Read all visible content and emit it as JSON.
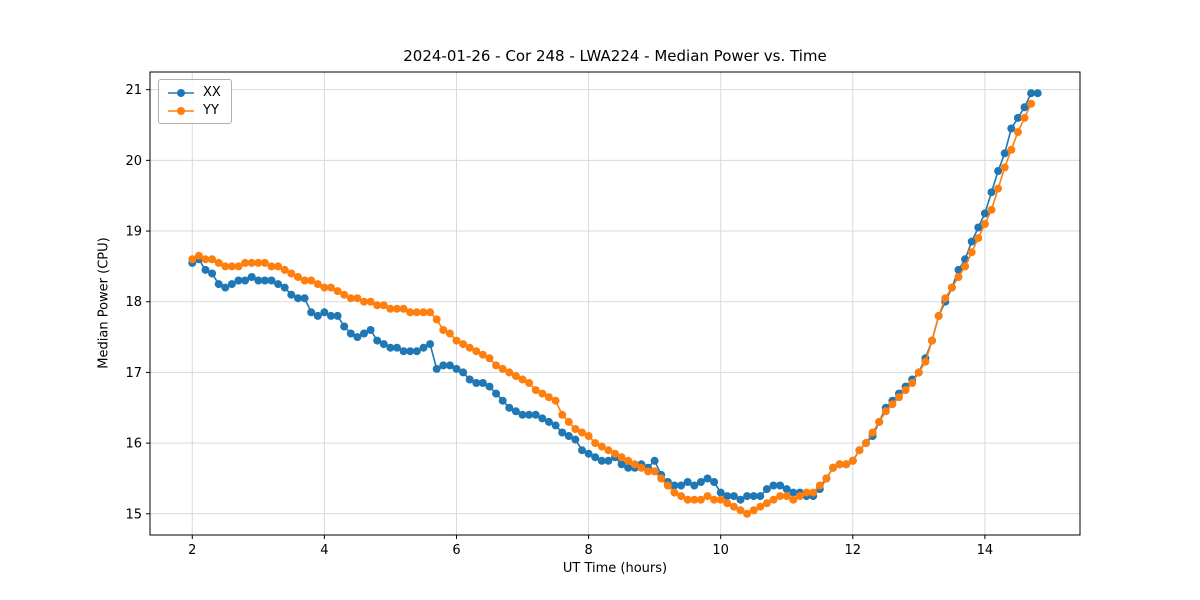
{
  "chart_data": {
    "type": "line",
    "title": "2024-01-26 - Cor 248 - LWA224 - Median Power vs. Time",
    "xlabel": "UT Time (hours)",
    "ylabel": "Median Power (CPU)",
    "xlim": [
      1.36,
      15.44
    ],
    "ylim": [
      14.7,
      21.25
    ],
    "xticks": [
      2,
      4,
      6,
      8,
      10,
      12,
      14
    ],
    "yticks": [
      15,
      16,
      17,
      18,
      19,
      20,
      21
    ],
    "grid": true,
    "grid_color": "#d9d9d9",
    "legend_position": "upper left",
    "series": [
      {
        "name": "XX",
        "color": "#1f77b4",
        "x": [
          2.0,
          2.1,
          2.2,
          2.3,
          2.4,
          2.5,
          2.6,
          2.7,
          2.8,
          2.9,
          3.0,
          3.1,
          3.2,
          3.3,
          3.4,
          3.5,
          3.6,
          3.7,
          3.8,
          3.9,
          4.0,
          4.1,
          4.2,
          4.3,
          4.4,
          4.5,
          4.6,
          4.7,
          4.8,
          4.9,
          5.0,
          5.1,
          5.2,
          5.3,
          5.4,
          5.5,
          5.6,
          5.7,
          5.8,
          5.9,
          6.0,
          6.1,
          6.2,
          6.3,
          6.4,
          6.5,
          6.6,
          6.7,
          6.8,
          6.9,
          7.0,
          7.1,
          7.2,
          7.3,
          7.4,
          7.5,
          7.6,
          7.7,
          7.8,
          7.9,
          8.0,
          8.1,
          8.2,
          8.3,
          8.4,
          8.5,
          8.6,
          8.7,
          8.8,
          8.9,
          9.0,
          9.1,
          9.2,
          9.3,
          9.4,
          9.5,
          9.6,
          9.7,
          9.8,
          9.9,
          10.0,
          10.1,
          10.2,
          10.3,
          10.4,
          10.5,
          10.6,
          10.7,
          10.8,
          10.9,
          11.0,
          11.1,
          11.2,
          11.3,
          11.4,
          11.5,
          11.6,
          11.7,
          11.8,
          11.9,
          12.0,
          12.1,
          12.2,
          12.3,
          12.4,
          12.5,
          12.6,
          12.7,
          12.8,
          12.9,
          13.0,
          13.1,
          13.2,
          13.3,
          13.4,
          13.5,
          13.6,
          13.7,
          13.8,
          13.9,
          14.0,
          14.1,
          14.2,
          14.3,
          14.4,
          14.5,
          14.6,
          14.7,
          14.8
        ],
        "y": [
          18.55,
          18.6,
          18.45,
          18.4,
          18.25,
          18.2,
          18.25,
          18.3,
          18.3,
          18.35,
          18.3,
          18.3,
          18.3,
          18.25,
          18.2,
          18.1,
          18.05,
          18.05,
          17.85,
          17.8,
          17.85,
          17.8,
          17.8,
          17.65,
          17.55,
          17.5,
          17.55,
          17.6,
          17.45,
          17.4,
          17.35,
          17.35,
          17.3,
          17.3,
          17.3,
          17.35,
          17.4,
          17.05,
          17.1,
          17.1,
          17.05,
          17.0,
          16.9,
          16.85,
          16.85,
          16.8,
          16.7,
          16.6,
          16.5,
          16.45,
          16.4,
          16.4,
          16.4,
          16.35,
          16.3,
          16.25,
          16.15,
          16.1,
          16.05,
          15.9,
          15.85,
          15.8,
          15.75,
          15.75,
          15.8,
          15.7,
          15.65,
          15.65,
          15.7,
          15.65,
          15.75,
          15.55,
          15.45,
          15.4,
          15.4,
          15.45,
          15.4,
          15.45,
          15.5,
          15.45,
          15.3,
          15.25,
          15.25,
          15.2,
          15.25,
          15.25,
          15.25,
          15.35,
          15.4,
          15.4,
          15.35,
          15.3,
          15.3,
          15.25,
          15.25,
          15.35,
          15.5,
          15.65,
          15.7,
          15.7,
          15.75,
          15.9,
          16.0,
          16.1,
          16.3,
          16.5,
          16.6,
          16.7,
          16.8,
          16.9,
          17.0,
          17.2,
          17.45,
          17.8,
          18.0,
          18.2,
          18.45,
          18.6,
          18.85,
          19.05,
          19.25,
          19.55,
          19.85,
          20.1,
          20.45,
          20.6,
          20.75,
          20.95,
          20.95
        ]
      },
      {
        "name": "YY",
        "color": "#ff7f0e",
        "x": [
          2.0,
          2.1,
          2.2,
          2.3,
          2.4,
          2.5,
          2.6,
          2.7,
          2.8,
          2.9,
          3.0,
          3.1,
          3.2,
          3.3,
          3.4,
          3.5,
          3.6,
          3.7,
          3.8,
          3.9,
          4.0,
          4.1,
          4.2,
          4.3,
          4.4,
          4.5,
          4.6,
          4.7,
          4.8,
          4.9,
          5.0,
          5.1,
          5.2,
          5.3,
          5.4,
          5.5,
          5.6,
          5.7,
          5.8,
          5.9,
          6.0,
          6.1,
          6.2,
          6.3,
          6.4,
          6.5,
          6.6,
          6.7,
          6.8,
          6.9,
          7.0,
          7.1,
          7.2,
          7.3,
          7.4,
          7.5,
          7.6,
          7.7,
          7.8,
          7.9,
          8.0,
          8.1,
          8.2,
          8.3,
          8.4,
          8.5,
          8.6,
          8.7,
          8.8,
          8.9,
          9.0,
          9.1,
          9.2,
          9.3,
          9.4,
          9.5,
          9.6,
          9.7,
          9.8,
          9.9,
          10.0,
          10.1,
          10.2,
          10.3,
          10.4,
          10.5,
          10.6,
          10.7,
          10.8,
          10.9,
          11.0,
          11.1,
          11.2,
          11.3,
          11.4,
          11.5,
          11.6,
          11.7,
          11.8,
          11.9,
          12.0,
          12.1,
          12.2,
          12.3,
          12.4,
          12.5,
          12.6,
          12.7,
          12.8,
          12.9,
          13.0,
          13.1,
          13.2,
          13.3,
          13.4,
          13.5,
          13.6,
          13.7,
          13.8,
          13.9,
          14.0,
          14.1,
          14.2,
          14.3,
          14.4,
          14.5,
          14.6,
          14.7
        ],
        "y": [
          18.6,
          18.65,
          18.6,
          18.6,
          18.55,
          18.5,
          18.5,
          18.5,
          18.55,
          18.55,
          18.55,
          18.55,
          18.5,
          18.5,
          18.45,
          18.4,
          18.35,
          18.3,
          18.3,
          18.25,
          18.2,
          18.2,
          18.15,
          18.1,
          18.05,
          18.05,
          18.0,
          18.0,
          17.95,
          17.95,
          17.9,
          17.9,
          17.9,
          17.85,
          17.85,
          17.85,
          17.85,
          17.75,
          17.6,
          17.55,
          17.45,
          17.4,
          17.35,
          17.3,
          17.25,
          17.2,
          17.1,
          17.05,
          17.0,
          16.95,
          16.9,
          16.85,
          16.75,
          16.7,
          16.65,
          16.6,
          16.4,
          16.3,
          16.2,
          16.15,
          16.1,
          16.0,
          15.95,
          15.9,
          15.85,
          15.8,
          15.75,
          15.7,
          15.65,
          15.6,
          15.6,
          15.5,
          15.4,
          15.3,
          15.25,
          15.2,
          15.2,
          15.2,
          15.25,
          15.2,
          15.2,
          15.15,
          15.1,
          15.05,
          15.0,
          15.05,
          15.1,
          15.15,
          15.2,
          15.25,
          15.25,
          15.2,
          15.25,
          15.3,
          15.3,
          15.4,
          15.5,
          15.65,
          15.7,
          15.7,
          15.75,
          15.9,
          16.0,
          16.15,
          16.3,
          16.45,
          16.55,
          16.65,
          16.75,
          16.85,
          17.0,
          17.15,
          17.45,
          17.8,
          18.05,
          18.2,
          18.35,
          18.5,
          18.7,
          18.9,
          19.1,
          19.3,
          19.6,
          19.9,
          20.15,
          20.4,
          20.6,
          20.8
        ]
      }
    ]
  }
}
